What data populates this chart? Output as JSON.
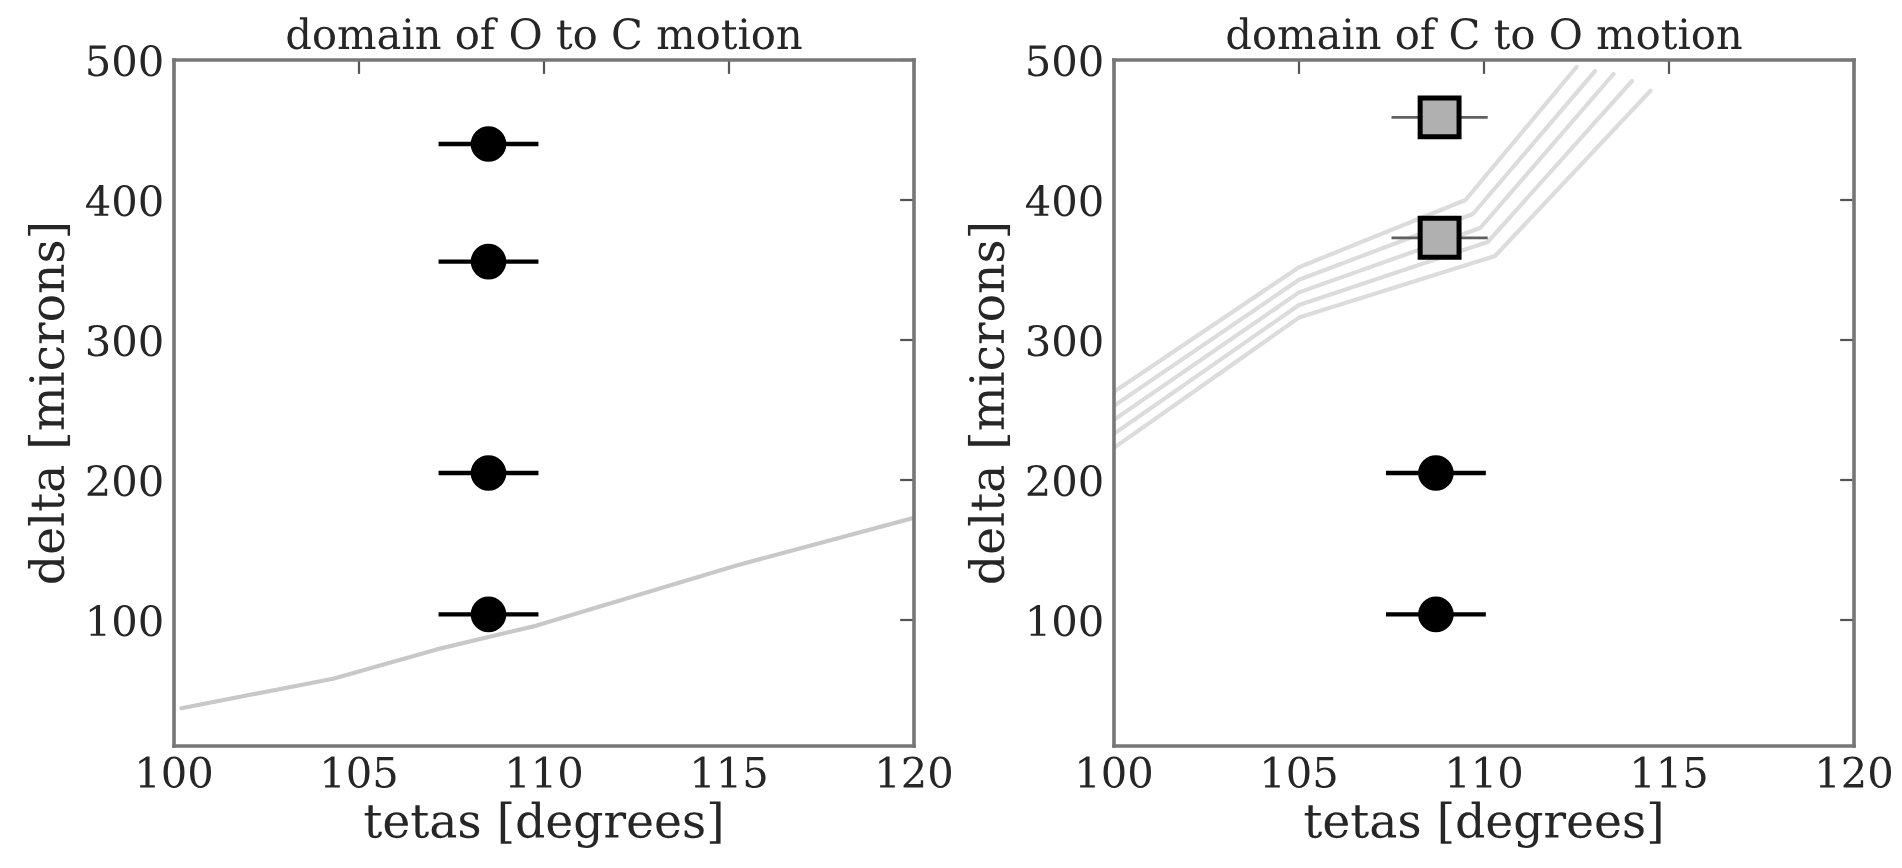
{
  "chart_data": [
    {
      "type": "scatter",
      "title": "domain of O to C motion",
      "xlabel": "tetas [degrees]",
      "ylabel": "delta [microns]",
      "xlim": [
        100,
        120
      ],
      "xticks": [
        100,
        105,
        110,
        115,
        120
      ],
      "ylim": [
        10,
        500
      ],
      "yticks": [
        100,
        200,
        300,
        400,
        500
      ],
      "grid": false,
      "legend": false,
      "series": [
        {
          "type": "line",
          "color": "#c8c8c8",
          "marker": "none",
          "x": [
            100.2,
            104.3,
            107.1,
            109.8,
            115.2,
            120
          ],
          "values": [
            37,
            58,
            79,
            96,
            139,
            173
          ]
        },
        {
          "color": "#000000",
          "marker": "circle",
          "x": [
            108.5,
            108.5,
            108.5,
            108.5
          ],
          "values": [
            440,
            356,
            205,
            104
          ],
          "xerrors": [
            1.35,
            1.35,
            1.35,
            1.35
          ]
        }
      ]
    },
    {
      "type": "scatter",
      "title": "domain of C to O motion",
      "xlabel": "tetas [degrees]",
      "ylabel": "delta [microns]",
      "xlim": [
        100,
        120
      ],
      "xticks": [
        100,
        105,
        110,
        115,
        120
      ],
      "ylim": [
        10,
        500
      ],
      "yticks": [
        100,
        200,
        300,
        400,
        500
      ],
      "grid": false,
      "legend": false,
      "series": [
        {
          "type": "line",
          "color": "#dcdcdc",
          "marker": "none",
          "x": [
            100,
            105,
            109.5,
            112.5
          ],
          "values": [
            263,
            352,
            400,
            495
          ]
        },
        {
          "type": "line",
          "color": "#dcdcdc",
          "marker": "none",
          "x": [
            100,
            105,
            109.7,
            113
          ],
          "values": [
            253,
            343,
            390,
            492
          ]
        },
        {
          "type": "line",
          "color": "#dcdcdc",
          "marker": "none",
          "x": [
            100,
            105,
            109.9,
            113.5
          ],
          "values": [
            243,
            334,
            380,
            490
          ]
        },
        {
          "type": "line",
          "color": "#dcdcdc",
          "marker": "none",
          "x": [
            100,
            105,
            110.1,
            114
          ],
          "values": [
            233,
            325,
            370,
            485
          ]
        },
        {
          "type": "line",
          "color": "#dcdcdc",
          "marker": "none",
          "x": [
            100,
            105,
            110.3,
            114.5
          ],
          "values": [
            223,
            316,
            360,
            478
          ]
        },
        {
          "color": "#b0b0b0",
          "marker": "square",
          "x": [
            108.8,
            108.8
          ],
          "values": [
            459,
            373
          ],
          "xerrors": [
            1.3,
            1.3
          ]
        },
        {
          "color": "#000000",
          "marker": "circle",
          "x": [
            108.7,
            108.7
          ],
          "values": [
            205,
            104
          ],
          "xerrors": [
            1.35,
            1.35
          ]
        }
      ]
    }
  ]
}
